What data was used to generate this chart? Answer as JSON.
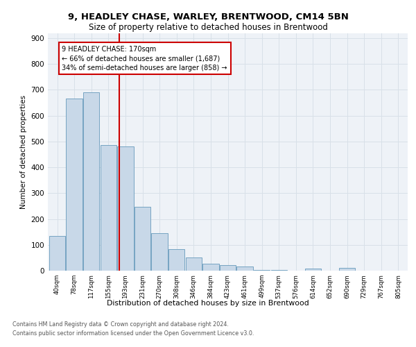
{
  "title1": "9, HEADLEY CHASE, WARLEY, BRENTWOOD, CM14 5BN",
  "title2": "Size of property relative to detached houses in Brentwood",
  "xlabel": "Distribution of detached houses by size in Brentwood",
  "ylabel": "Number of detached properties",
  "footer1": "Contains HM Land Registry data © Crown copyright and database right 2024.",
  "footer2": "Contains public sector information licensed under the Open Government Licence v3.0.",
  "bins": [
    "40sqm",
    "78sqm",
    "117sqm",
    "155sqm",
    "193sqm",
    "231sqm",
    "270sqm",
    "308sqm",
    "346sqm",
    "384sqm",
    "423sqm",
    "461sqm",
    "499sqm",
    "537sqm",
    "576sqm",
    "614sqm",
    "652sqm",
    "690sqm",
    "729sqm",
    "767sqm",
    "805sqm"
  ],
  "bar_heights": [
    135,
    665,
    690,
    485,
    480,
    248,
    145,
    82,
    50,
    26,
    22,
    15,
    4,
    4,
    0,
    8,
    0,
    10,
    0,
    0,
    0
  ],
  "bar_color": "#c8d8e8",
  "bar_edge_color": "#6699bb",
  "vline_x": 3.62,
  "vline_color": "#cc0000",
  "annotation_line1": "9 HEADLEY CHASE: 170sqm",
  "annotation_line2": "← 66% of detached houses are smaller (1,687)",
  "annotation_line3": "34% of semi-detached houses are larger (858) →",
  "box_color": "#cc0000",
  "ylim": [
    0,
    920
  ],
  "yticks": [
    0,
    100,
    200,
    300,
    400,
    500,
    600,
    700,
    800,
    900
  ],
  "grid_color": "#d8e0e8",
  "bg_color": "#eef2f7"
}
